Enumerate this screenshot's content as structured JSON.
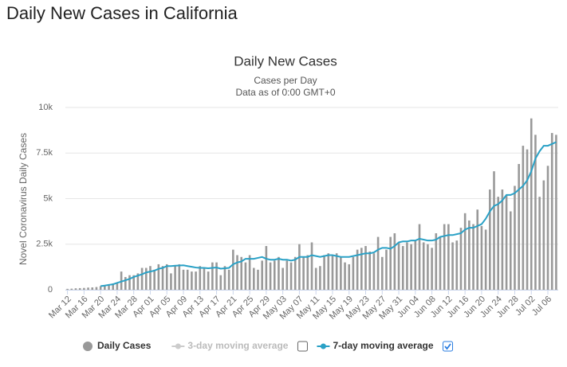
{
  "page_title": "Daily New Cases in California",
  "chart_data": {
    "type": "bar_line",
    "title": "Daily New Cases",
    "subtitle": [
      "Cases per Day",
      "Data as of 0:00 GMT+0"
    ],
    "y_label": "Novel Coronavirus Daily Cases",
    "categories": [
      "Mar 12",
      null,
      null,
      null,
      "Mar 16",
      null,
      null,
      null,
      "Mar 20",
      null,
      null,
      null,
      "Mar 24",
      null,
      null,
      null,
      "Mar 28",
      null,
      null,
      null,
      "Apr 01",
      null,
      null,
      null,
      "Apr 05",
      null,
      null,
      null,
      "Apr 09",
      null,
      null,
      null,
      "Apr 13",
      null,
      null,
      null,
      "Apr 17",
      null,
      null,
      null,
      "Apr 21",
      null,
      null,
      null,
      "Apr 25",
      null,
      null,
      null,
      "Apr 29",
      null,
      null,
      null,
      "May 03",
      null,
      null,
      null,
      "May 07",
      null,
      null,
      null,
      "May 11",
      null,
      null,
      null,
      "May 15",
      null,
      null,
      null,
      "May 19",
      null,
      null,
      null,
      "May 23",
      null,
      null,
      null,
      "May 27",
      null,
      null,
      null,
      "May 31",
      null,
      null,
      null,
      "Jun 04",
      null,
      null,
      null,
      "Jun 08",
      null,
      null,
      null,
      "Jun 12",
      null,
      null,
      null,
      "Jun 16",
      null,
      null,
      null,
      "Jun 20",
      null,
      null,
      null,
      "Jun 24",
      null,
      null,
      null,
      "Jun 28",
      null,
      null,
      null,
      "Jul 02",
      null,
      null,
      null,
      "Jul 06",
      null,
      null
    ],
    "series": [
      {
        "name": "Daily Cases",
        "kind": "bar",
        "color": "#999999",
        "visible": true,
        "values": [
          50,
          60,
          80,
          90,
          100,
          120,
          130,
          150,
          200,
          250,
          300,
          350,
          400,
          1000,
          700,
          800,
          800,
          900,
          1200,
          1200,
          1300,
          1100,
          1400,
          1300,
          1400,
          900,
          1300,
          1400,
          1100,
          1100,
          1000,
          1000,
          1300,
          1200,
          1000,
          1500,
          1500,
          800,
          1300,
          1100,
          2200,
          1900,
          1800,
          1500,
          1900,
          1200,
          1100,
          1600,
          2400,
          1500,
          1600,
          1800,
          1200,
          1600,
          1500,
          1800,
          2500,
          1800,
          1900,
          2600,
          1200,
          1300,
          1900,
          2000,
          1900,
          2000,
          1800,
          1500,
          1400,
          1800,
          2200,
          2300,
          2400,
          2100,
          2000,
          2900,
          1800,
          2200,
          2900,
          3100,
          2600,
          2400,
          2600,
          2500,
          2700,
          3600,
          2600,
          2500,
          2300,
          3100,
          2900,
          3600,
          3600,
          2600,
          2700,
          3400,
          4200,
          3800,
          3600,
          4400,
          3500,
          3300,
          5500,
          6500,
          5100,
          5500,
          5200,
          4300,
          5700,
          6900,
          7900,
          7700,
          9400,
          8500,
          5100,
          6000,
          6800,
          8600,
          8500
        ]
      },
      {
        "name": "3-day moving average",
        "kind": "line",
        "color": "#cccccc",
        "visible": false
      },
      {
        "name": "7-day moving average",
        "kind": "line",
        "color": "#2aa1c6",
        "visible": true,
        "values": [
          null,
          null,
          null,
          null,
          null,
          null,
          null,
          null,
          200,
          230,
          270,
          300,
          380,
          450,
          520,
          600,
          700,
          780,
          850,
          950,
          1000,
          1050,
          1150,
          1200,
          1300,
          1300,
          1320,
          1330,
          1340,
          1300,
          1260,
          1220,
          1200,
          1200,
          1180,
          1200,
          1220,
          1160,
          1180,
          1200,
          1400,
          1500,
          1550,
          1700,
          1700,
          1700,
          1750,
          1800,
          1700,
          1650,
          1650,
          1700,
          1650,
          1650,
          1600,
          1650,
          1800,
          1800,
          1800,
          1900,
          1850,
          1800,
          1850,
          1900,
          1900,
          1850,
          1800,
          1800,
          1800,
          1850,
          1900,
          1950,
          2000,
          2000,
          2050,
          2200,
          2300,
          2300,
          2250,
          2400,
          2600,
          2650,
          2650,
          2700,
          2700,
          2800,
          2750,
          2700,
          2700,
          2750,
          2900,
          2950,
          3000,
          3000,
          3050,
          3100,
          3300,
          3400,
          3400,
          3500,
          3600,
          3900,
          4300,
          4600,
          4700,
          4900,
          5200,
          5200,
          5300,
          5500,
          5700,
          6000,
          6500,
          7200,
          7600,
          7900,
          7900,
          8000,
          8100
        ]
      }
    ],
    "ylim": [
      0,
      10000
    ],
    "yticks": [
      0,
      {
        "value": 2500,
        "label": "2.5k"
      },
      {
        "value": 5000,
        "label": "5k"
      },
      {
        "value": 7500,
        "label": "7.5k"
      },
      {
        "value": 10000,
        "label": "10k"
      }
    ],
    "grid": true
  }
}
